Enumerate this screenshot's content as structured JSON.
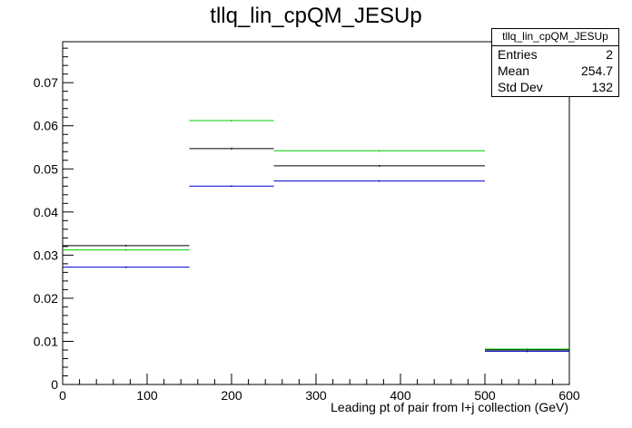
{
  "chart_data": {
    "type": "histogram",
    "title": "tllq_lin_cpQM_JESUp",
    "xlabel": "Leading pt of pair from l+j collection (GeV)",
    "ylabel": "",
    "xlim": [
      0,
      600
    ],
    "ylim": [
      0,
      0.0795
    ],
    "x_ticks": [
      0,
      100,
      200,
      300,
      400,
      500,
      600
    ],
    "x_tick_labels": [
      "0",
      "100",
      "200",
      "300",
      "400",
      "500",
      "600"
    ],
    "y_ticks": [
      0,
      0.01,
      0.02,
      0.03,
      0.04,
      0.05,
      0.06,
      0.07
    ],
    "y_tick_labels": [
      "0",
      "0.01",
      "0.02",
      "0.03",
      "0.04",
      "0.05",
      "0.06",
      "0.07"
    ],
    "bin_edges": [
      0,
      150,
      250,
      500,
      600
    ],
    "grid": false,
    "series": [
      {
        "color": "#000000",
        "values": [
          0.0322,
          0.0547,
          0.0507,
          0.008
        ]
      },
      {
        "color": "#00cc00",
        "values": [
          0.0312,
          0.0612,
          0.0542,
          0.0082
        ]
      },
      {
        "color": "#0000cc",
        "values": [
          0.0272,
          0.046,
          0.0472,
          0.0077
        ]
      }
    ]
  },
  "stats_box": {
    "name": "tllq_lin_cpQM_JESUp",
    "rows": [
      {
        "label": "Entries",
        "value": "2"
      },
      {
        "label": "Mean",
        "value": "254.7"
      },
      {
        "label": "Std Dev",
        "value": "132"
      }
    ]
  }
}
